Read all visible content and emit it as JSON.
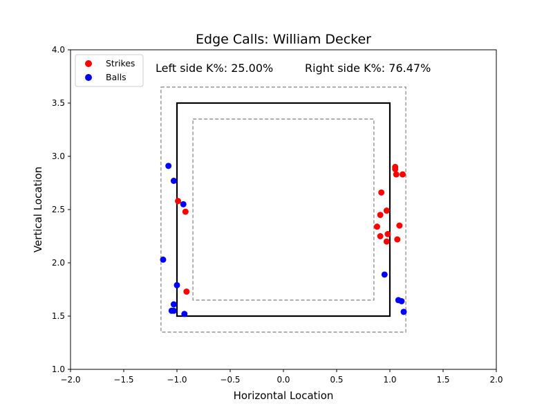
{
  "chart_data": {
    "type": "scatter",
    "title": "Edge Calls: William Decker",
    "xlabel": "Horizontal Location",
    "ylabel": "Vertical Location",
    "xlim": [
      -2.0,
      2.0
    ],
    "ylim": [
      1.0,
      4.0
    ],
    "x_ticks": [
      "−2.0",
      "−1.5",
      "−1.0",
      "−0.5",
      "0.0",
      "0.5",
      "1.0",
      "1.5",
      "2.0"
    ],
    "y_ticks": [
      "1.0",
      "1.5",
      "2.0",
      "2.5",
      "3.0",
      "3.5",
      "4.0"
    ],
    "grid": false,
    "legend_position": "top-left",
    "annotations": {
      "left": "Left side K%: 25.00%",
      "right": "Right side K%: 76.47%"
    },
    "zones": {
      "strike_zone": {
        "x": [
          -1.0,
          1.0
        ],
        "y": [
          1.5,
          3.5
        ],
        "style": "solid",
        "color": "#000000"
      },
      "outer_edge": {
        "x": [
          -1.15,
          1.15
        ],
        "y": [
          1.35,
          3.65
        ],
        "style": "dashed",
        "color": "#808080"
      },
      "inner_edge": {
        "x": [
          -0.85,
          0.85
        ],
        "y": [
          1.65,
          3.35
        ],
        "style": "dashed",
        "color": "#808080"
      }
    },
    "series": [
      {
        "name": "Strikes",
        "color": "#ff0000",
        "points": [
          [
            -0.99,
            2.58
          ],
          [
            -0.92,
            2.48
          ],
          [
            -0.91,
            1.73
          ],
          [
            1.05,
            2.9
          ],
          [
            1.06,
            2.83
          ],
          [
            1.12,
            2.83
          ],
          [
            0.92,
            2.66
          ],
          [
            0.97,
            2.49
          ],
          [
            0.91,
            2.45
          ],
          [
            0.88,
            2.34
          ],
          [
            1.09,
            2.35
          ],
          [
            0.98,
            2.27
          ],
          [
            0.91,
            2.25
          ],
          [
            1.07,
            2.22
          ],
          [
            0.97,
            2.2
          ],
          [
            1.05,
            2.88
          ]
        ]
      },
      {
        "name": "Balls",
        "color": "#0000ff",
        "points": [
          [
            -1.08,
            2.91
          ],
          [
            -1.03,
            2.77
          ],
          [
            -0.94,
            2.55
          ],
          [
            -1.13,
            2.03
          ],
          [
            -1.0,
            1.79
          ],
          [
            -1.03,
            1.61
          ],
          [
            -1.05,
            1.55
          ],
          [
            -1.03,
            1.55
          ],
          [
            -0.93,
            1.52
          ],
          [
            0.95,
            1.89
          ],
          [
            1.08,
            1.65
          ],
          [
            1.11,
            1.64
          ],
          [
            1.13,
            1.54
          ]
        ]
      }
    ]
  }
}
